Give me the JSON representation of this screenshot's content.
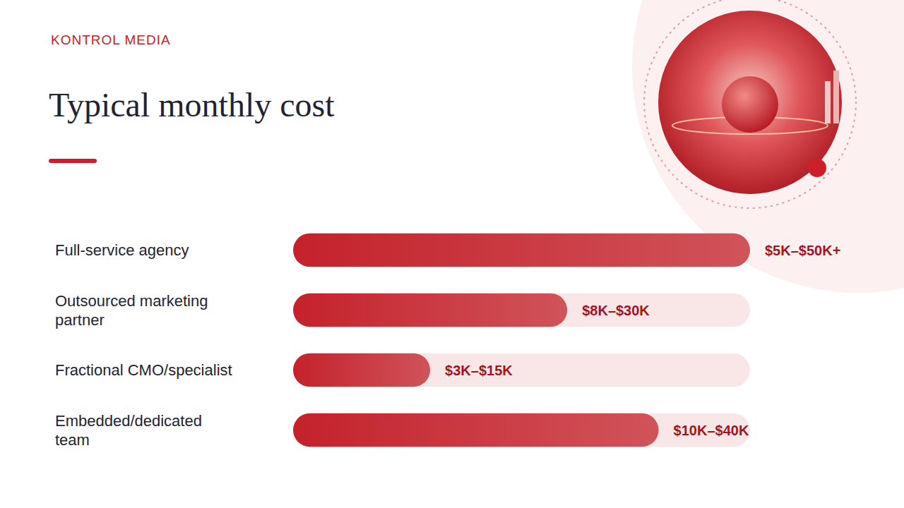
{
  "brand": "KONTROL MEDIA",
  "chart_data": {
    "type": "bar",
    "title": "Typical monthly cost",
    "orientation": "horizontal",
    "categories": [
      "Full-service agency",
      "Outsourced marketing partner",
      "Fractional CMO/specialist",
      "Embedded/dedicated team"
    ],
    "values": [
      50,
      30,
      15,
      40
    ],
    "value_labels": [
      "$5K–$50K+",
      "$8K–$30K",
      "$3K–$15K",
      "$10K–$40K"
    ],
    "color": "#c4222b",
    "xlim": [
      0,
      50
    ],
    "data_labels": true,
    "tick_labels": false
  }
}
